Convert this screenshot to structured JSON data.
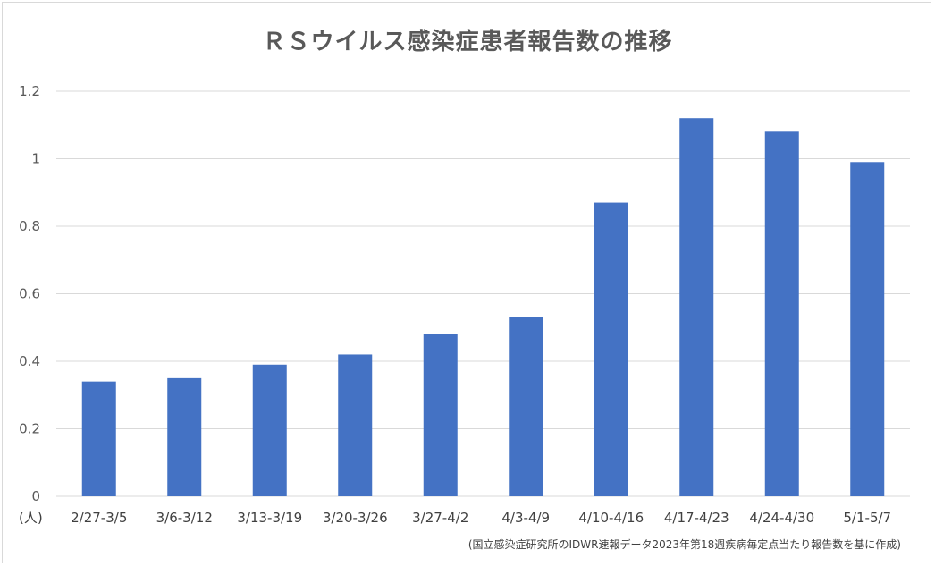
{
  "chart_data": {
    "type": "bar",
    "title": "ＲＳウイルス感染症患者報告数の推移",
    "categories": [
      "2/27-3/5",
      "3/6-3/12",
      "3/13-3/19",
      "3/20-3/26",
      "3/27-4/2",
      "4/3-4/9",
      "4/10-4/16",
      "4/17-4/23",
      "4/24-4/30",
      "5/1-5/7"
    ],
    "values": [
      0.34,
      0.35,
      0.39,
      0.42,
      0.48,
      0.53,
      0.87,
      1.12,
      1.08,
      0.99
    ],
    "ylim": [
      0,
      1.2
    ],
    "yticks": [
      "0",
      "0.2",
      "0.4",
      "0.6",
      "0.8",
      "1",
      "1.2"
    ],
    "unit_label": "(人)",
    "source_note": "(国立感染症研究所のIDWR速報データ2023年第18週疾病毎定点当たり報告数を基に作成)",
    "bar_color": "#4472C4",
    "grid": true
  }
}
